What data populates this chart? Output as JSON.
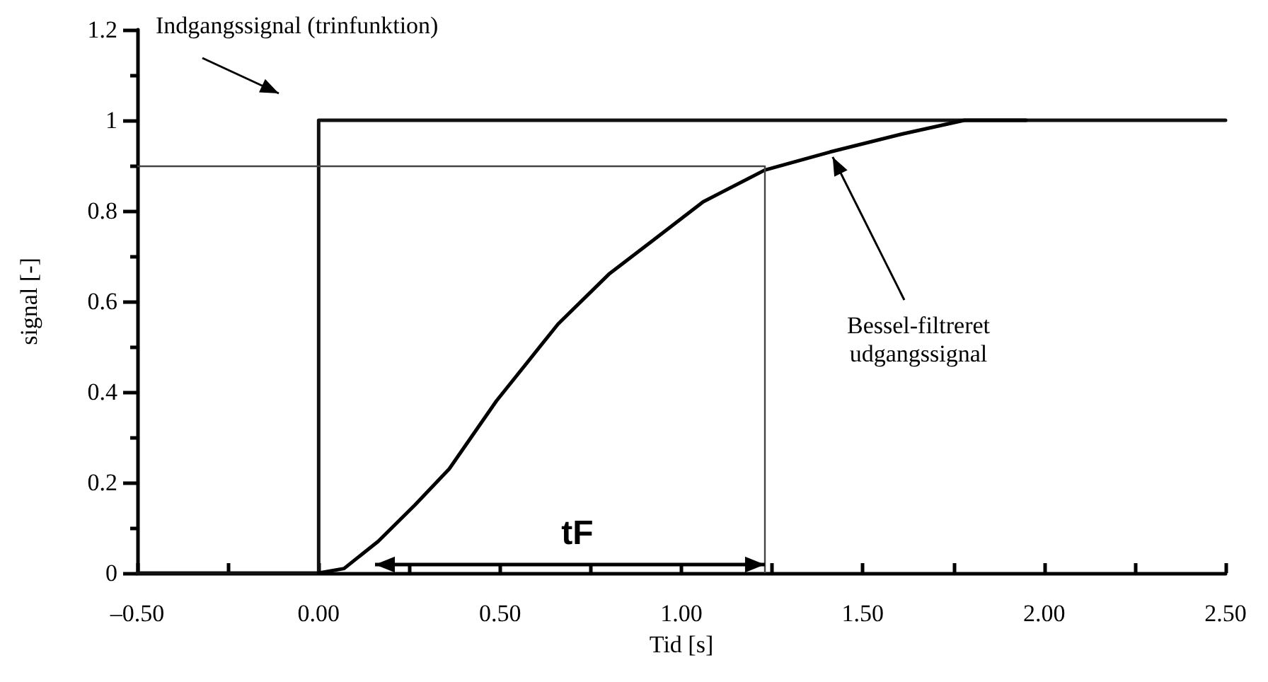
{
  "chart_data": {
    "type": "line",
    "xlabel": "Tid [s]",
    "ylabel": "signal [-]",
    "series": [
      {
        "color": "#111111",
        "x": [
          -0.5,
          0,
          0,
          2.5
        ],
        "values": [
          0,
          0,
          1,
          1
        ]
      },
      {
        "color": "#000000",
        "x": [
          0,
          0.07,
          0.164,
          0.265,
          0.36,
          0.49,
          0.66,
          0.8,
          0.93,
          1.06,
          1.23,
          1.41,
          1.61,
          1.78,
          1.95
        ],
        "values": [
          0,
          0.01,
          0.07,
          0.15,
          0.23,
          0.38,
          0.55,
          0.66,
          0.74,
          0.82,
          0.89,
          0.93,
          0.97,
          1.0,
          1.0
        ]
      }
    ],
    "xlim": [
      -0.5,
      2.5
    ],
    "xticks": [
      {
        "value": -0.5,
        "label": "–0.50"
      },
      {
        "value": 0,
        "label": "0.00"
      },
      {
        "value": 0.5,
        "label": "0.50"
      },
      {
        "value": 1,
        "label": "1.00"
      },
      {
        "value": 1.5,
        "label": "1.50"
      },
      {
        "value": 2,
        "label": "2.00"
      },
      {
        "value": 2.5,
        "label": "2.50"
      }
    ],
    "ylim": [
      0,
      1.2
    ],
    "yticks": [
      0,
      0.2,
      0.4,
      0.6,
      0.8,
      1,
      1.2
    ],
    "ref_lines": [
      {
        "axis": "y",
        "value": 0.9,
        "color": "#444444"
      },
      {
        "axis": "x",
        "value": 1.23,
        "color": "#444444"
      }
    ],
    "annotations": [
      "Indgangssignal (trinfunktion)",
      {
        "text": "Bessel-filtreret\nudgangssignal",
        "x": 1.41,
        "y": 0.93
      },
      "tF"
    ],
    "grid": false,
    "marker": "none",
    "line_style": "solid"
  }
}
